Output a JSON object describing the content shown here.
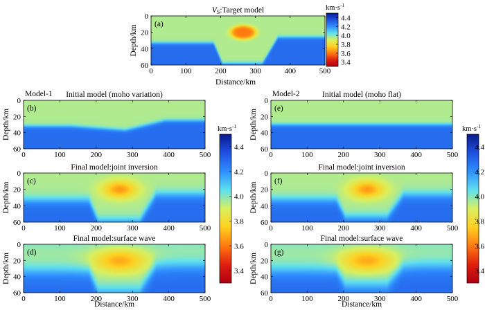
{
  "chart_data": {
    "type": "heatmap",
    "quantity": "Vs",
    "colorbar": {
      "unit_base": "km·s",
      "unit_exp": "-1",
      "range": [
        3.3,
        4.5
      ],
      "ticks": [
        "4.4",
        "4.2",
        "4.0",
        "3.8",
        "3.6",
        "3.4"
      ],
      "tick_values": [
        4.4,
        4.2,
        4.0,
        3.8,
        3.6,
        3.4
      ],
      "colors": [
        "#0a1a8c",
        "#1e50e0",
        "#2f8fff",
        "#5fe0f0",
        "#d8f060",
        "#ffd020",
        "#ff7a10",
        "#e02010",
        "#b00010"
      ]
    },
    "xticks": [
      "0",
      "100",
      "200",
      "300",
      "400",
      "500"
    ],
    "xtick_values": [
      0,
      100,
      200,
      300,
      400,
      500
    ],
    "yticks": [
      "0",
      "20",
      "40",
      "60"
    ],
    "ytick_values": [
      0,
      20,
      40,
      60
    ],
    "xlim": [
      0,
      500
    ],
    "ylim": [
      0,
      60
    ],
    "xlabel": "Distance/km",
    "ylabel": "Depth/km",
    "column_labels": [
      "Model-1",
      "Model-2"
    ],
    "crust_velocity": 3.95,
    "mantle_velocity": 4.28,
    "anomaly": {
      "center_x": 265,
      "center_z": 20,
      "velocity": 3.6
    },
    "panels": [
      {
        "id": "a",
        "label": "(a)",
        "title_prefix": "V",
        "title_sub": "S",
        "title_suffix": ":Target model",
        "title": "",
        "moho": "variation",
        "mode": "target",
        "show_xlabel": true
      },
      {
        "id": "b",
        "label": "(b)",
        "title": "Initial model (moho variation)",
        "moho": "variation",
        "mode": "initial",
        "show_xlabel": false
      },
      {
        "id": "c",
        "label": "(c)",
        "title": "Final model:joint inversion",
        "moho": "variation",
        "mode": "joint",
        "show_xlabel": false
      },
      {
        "id": "d",
        "label": "(d)",
        "title": "Final model:surface wave",
        "moho": "variation",
        "mode": "surface",
        "show_xlabel": true
      },
      {
        "id": "e",
        "label": "(e)",
        "title": "Initial model (moho flat)",
        "moho": "flat",
        "mode": "initial",
        "show_xlabel": false
      },
      {
        "id": "f",
        "label": "(f)",
        "title": "Final model:joint inversion",
        "moho": "flat",
        "mode": "joint",
        "show_xlabel": false
      },
      {
        "id": "g",
        "label": "(g)",
        "title": "Final model:surface wave",
        "moho": "flat",
        "mode": "surface",
        "show_xlabel": true
      }
    ]
  }
}
